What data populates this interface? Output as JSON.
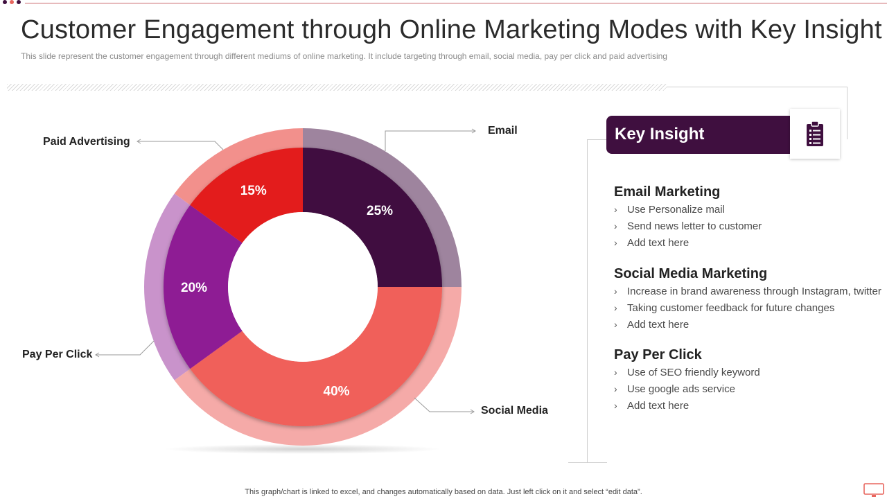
{
  "header": {
    "title": "Customer Engagement through Online Marketing Modes with Key Insight",
    "subtitle": "This slide represent the customer engagement through different mediums of online marketing. It include targeting through email, social media, pay per click and paid advertising"
  },
  "colors": {
    "dot1": "#3f0f3f",
    "dot2": "#e8665e",
    "dot3": "#3f0f3f",
    "accent": "#3f0f3f"
  },
  "chart_data": {
    "type": "pie",
    "variant": "donut",
    "title": "",
    "slices": [
      {
        "label": "Email",
        "value": 25,
        "display": "25%",
        "color": "#3f0f3f",
        "ring_color": "#9e849e"
      },
      {
        "label": "Social Media",
        "value": 40,
        "display": "40%",
        "color": "#f0605a",
        "ring_color": "#f5aaa8"
      },
      {
        "label": "Pay Per Click",
        "value": 20,
        "display": "20%",
        "color": "#8e1e94",
        "ring_color": "#c993cb"
      },
      {
        "label": "Paid Advertising",
        "value": 15,
        "display": "15%",
        "color": "#e31c1a",
        "ring_color": "#f2908c"
      }
    ],
    "legend": "callouts"
  },
  "insight": {
    "title": "Key Insight",
    "icon": "clipboard-icon",
    "sections": [
      {
        "title": "Email Marketing",
        "items": [
          "Use Personalize mail",
          "Send news letter to customer",
          "Add text here"
        ]
      },
      {
        "title": "Social Media Marketing",
        "items": [
          "Increase in brand awareness through Instagram, twitter",
          "Taking customer feedback for future changes",
          "Add text here"
        ]
      },
      {
        "title": "Pay Per Click",
        "items": [
          "Use of SEO friendly keyword",
          "Use google ads service",
          "Add text here"
        ]
      }
    ],
    "bullet_glyph": "›"
  },
  "footer": {
    "note": "This graph/chart is linked to excel, and changes automatically based on data. Just left click on it and select “edit data”.",
    "icon": "monitor-icon"
  }
}
